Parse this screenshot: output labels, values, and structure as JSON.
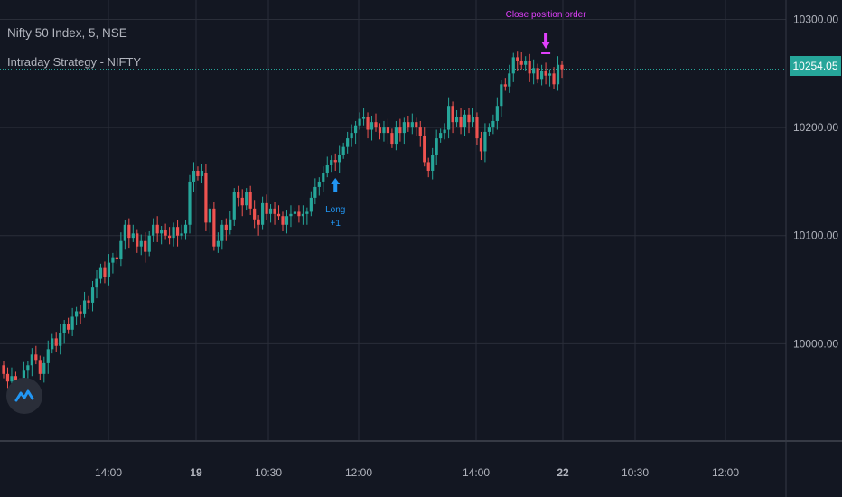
{
  "header": {
    "symbol": "Nifty 50 Index, 5, NSE",
    "strategy": "Intraday Strategy - NIFTY"
  },
  "logo": {
    "icon": "tradingview-cloud-icon"
  },
  "colors": {
    "background": "#131722",
    "up": "#26a69a",
    "down": "#ef5350",
    "grid": "#2a2e39",
    "axis_text": "#b2b5be",
    "long_signal": "#2196f3",
    "close_signal": "#e040fb",
    "price_line": "#26a69a"
  },
  "signals": {
    "long_label": "Long",
    "long_qty": "+1",
    "close_label": "Close position order"
  },
  "chart_data": {
    "type": "candlestick",
    "title": "",
    "xlabel": "",
    "ylabel": "",
    "ylim": [
      9910,
      10318
    ],
    "y_ticks": [
      10000,
      10100,
      10200,
      10300
    ],
    "y_tick_labels": [
      "10000.00",
      "10100.00",
      "10200.00",
      "10300.00"
    ],
    "x_ticks": [
      "14:00",
      "19",
      "10:30",
      "12:00",
      "14:00",
      "22",
      "10:30",
      "12:00"
    ],
    "last_price": 10254.05,
    "last_price_label": "10254.05",
    "closes": [
      9972,
      9965,
      9970,
      9962,
      9960,
      9975,
      9980,
      9990,
      9985,
      9972,
      9982,
      9995,
      10005,
      9998,
      10010,
      10018,
      10013,
      10025,
      10030,
      10028,
      10040,
      10038,
      10052,
      10060,
      10070,
      10062,
      10075,
      10080,
      10078,
      10095,
      10110,
      10098,
      10102,
      10090,
      10095,
      10085,
      10100,
      10110,
      10102,
      10105,
      10100,
      10098,
      10108,
      10100,
      10102,
      10110,
      10150,
      10160,
      10155,
      10160,
      10112,
      10125,
      10090,
      10095,
      10110,
      10105,
      10115,
      10140,
      10135,
      10128,
      10140,
      10125,
      10115,
      10110,
      10130,
      10120,
      10125,
      10120,
      10118,
      10110,
      10118,
      10120,
      10122,
      10118,
      10120,
      10122,
      10135,
      10145,
      10150,
      10158,
      10165,
      10170,
      10168,
      10175,
      10182,
      10190,
      10195,
      10202,
      10208,
      10210,
      10198,
      10205,
      10200,
      10195,
      10200,
      10195,
      10185,
      10200,
      10195,
      10205,
      10200,
      10205,
      10200,
      10192,
      10168,
      10160,
      10175,
      10190,
      10195,
      10198,
      10220,
      10205,
      10210,
      10200,
      10212,
      10205,
      10210,
      10190,
      10178,
      10196,
      10200,
      10206,
      10220,
      10240,
      10238,
      10250,
      10265,
      10262,
      10258,
      10262,
      10250,
      10255,
      10245,
      10252,
      10248,
      10250,
      10240,
      10258,
      10254
    ],
    "opens": [
      9980,
      9972,
      9965,
      9970,
      9962,
      9960,
      9975,
      9980,
      9990,
      9985,
      9972,
      9982,
      9995,
      10005,
      9998,
      10010,
      10018,
      10013,
      10025,
      10030,
      10028,
      10040,
      10038,
      10052,
      10060,
      10070,
      10062,
      10075,
      10080,
      10078,
      10095,
      10110,
      10098,
      10102,
      10090,
      10095,
      10085,
      10100,
      10110,
      10102,
      10105,
      10100,
      10098,
      10108,
      10100,
      10102,
      10110,
      10150,
      10160,
      10155,
      10158,
      10112,
      10125,
      10090,
      10095,
      10110,
      10105,
      10115,
      10140,
      10135,
      10128,
      10140,
      10125,
      10115,
      10110,
      10130,
      10120,
      10125,
      10120,
      10118,
      10110,
      10118,
      10120,
      10122,
      10118,
      10120,
      10122,
      10135,
      10145,
      10150,
      10158,
      10165,
      10170,
      10168,
      10175,
      10182,
      10190,
      10195,
      10202,
      10208,
      10210,
      10198,
      10205,
      10200,
      10195,
      10200,
      10195,
      10185,
      10200,
      10195,
      10205,
      10200,
      10205,
      10200,
      10192,
      10168,
      10160,
      10175,
      10190,
      10195,
      10198,
      10220,
      10205,
      10210,
      10200,
      10212,
      10205,
      10210,
      10190,
      10178,
      10196,
      10200,
      10206,
      10220,
      10240,
      10238,
      10250,
      10265,
      10262,
      10258,
      10262,
      10250,
      10255,
      10245,
      10252,
      10248,
      10250,
      10240,
      10258
    ],
    "signal_long_index": 82,
    "signal_close_index": 134
  }
}
